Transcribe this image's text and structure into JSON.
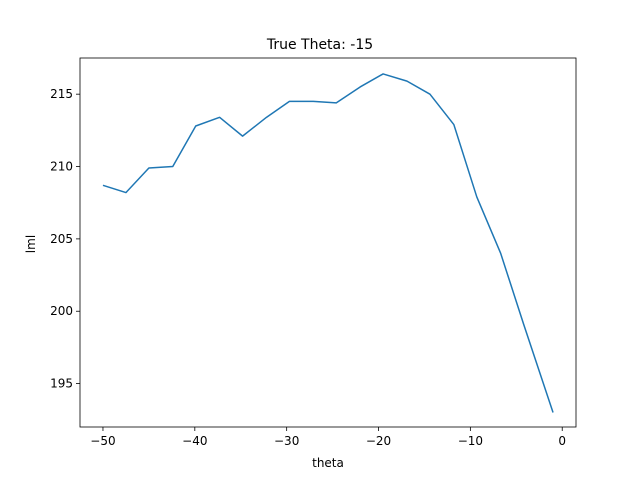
{
  "chart_data": {
    "type": "line",
    "title": "True Theta: -15",
    "xlabel": "theta",
    "ylabel": "lml",
    "xlim": [
      -52.5,
      1.5
    ],
    "ylim": [
      192.0,
      217.5
    ],
    "xticks": [
      -50,
      -40,
      -30,
      -20,
      -10,
      0
    ],
    "xtick_labels": [
      "−50",
      "−40",
      "−30",
      "−20",
      "−10",
      "0"
    ],
    "yticks": [
      195,
      200,
      205,
      210,
      215
    ],
    "ytick_labels": [
      "195",
      "200",
      "205",
      "210",
      "215"
    ],
    "grid": false,
    "line_color": "#1f77b4",
    "series": [
      {
        "x": [
          -50,
          -47.5,
          -45,
          -42.4,
          -39.9,
          -37.3,
          -34.8,
          -32.2,
          -29.7,
          -27.1,
          -24.6,
          -22.0,
          -19.5,
          -16.9,
          -14.4,
          -11.8,
          -9.3,
          -6.7,
          -4.2,
          -1.0
        ],
        "y": [
          208.7,
          208.2,
          209.9,
          210.0,
          212.8,
          213.4,
          212.1,
          213.4,
          214.5,
          214.5,
          214.4,
          215.5,
          216.4,
          215.9,
          215.0,
          212.9,
          207.9,
          204.0,
          199.1,
          193.0
        ]
      }
    ]
  }
}
